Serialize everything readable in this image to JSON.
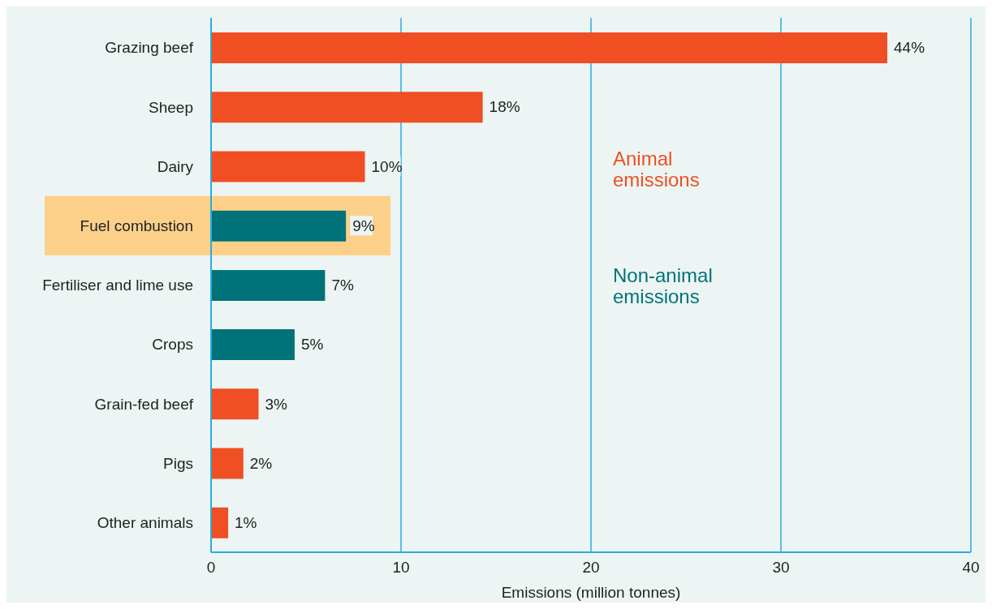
{
  "chart_data": {
    "type": "bar",
    "orientation": "horizontal",
    "stacked": true,
    "categories": [
      "Grazing beef",
      "Sheep",
      "Dairy",
      "Fuel combustion",
      "Fertiliser and lime use",
      "Crops",
      "Grain-fed beef",
      "Pigs",
      "Other animals"
    ],
    "series": [
      {
        "name": "Animal emissions",
        "color": "#f04e23",
        "values": [
          35.6,
          14.3,
          8.1,
          null,
          null,
          null,
          2.5,
          1.7,
          0.9
        ]
      },
      {
        "name": "Non-animal emissions",
        "color": "#00737a",
        "values": [
          null,
          null,
          null,
          7.1,
          6.0,
          4.4,
          null,
          null,
          null
        ]
      }
    ],
    "annotations": [
      {
        "text": "44%",
        "x": 35.6,
        "y": "Grazing beef"
      },
      {
        "text": "18%",
        "x": 14.3,
        "y": "Sheep"
      },
      {
        "text": "10%",
        "x": 8.1,
        "y": "Dairy"
      },
      {
        "text": "9%",
        "x": 7.1,
        "y": "Fuel combustion"
      },
      {
        "text": "7%",
        "x": 6.0,
        "y": "Fertiliser and lime use"
      },
      {
        "text": "5%",
        "x": 4.4,
        "y": "Crops"
      },
      {
        "text": "3%",
        "x": 2.5,
        "y": "Grain-fed beef"
      },
      {
        "text": "2%",
        "x": 1.7,
        "y": "Pigs"
      },
      {
        "text": "1%",
        "x": 0.9,
        "y": "Other animals"
      }
    ],
    "xlim": [
      0,
      40
    ],
    "xticks": [
      0,
      10,
      20,
      30,
      40
    ],
    "xlabel": "Emissions (million tonnes)",
    "grid": "x",
    "legend": "right",
    "bands": [
      {
        "axis": "y",
        "from": "Fuel combustion",
        "to": "Fuel combustion",
        "color": "#fdd08a"
      }
    ]
  }
}
